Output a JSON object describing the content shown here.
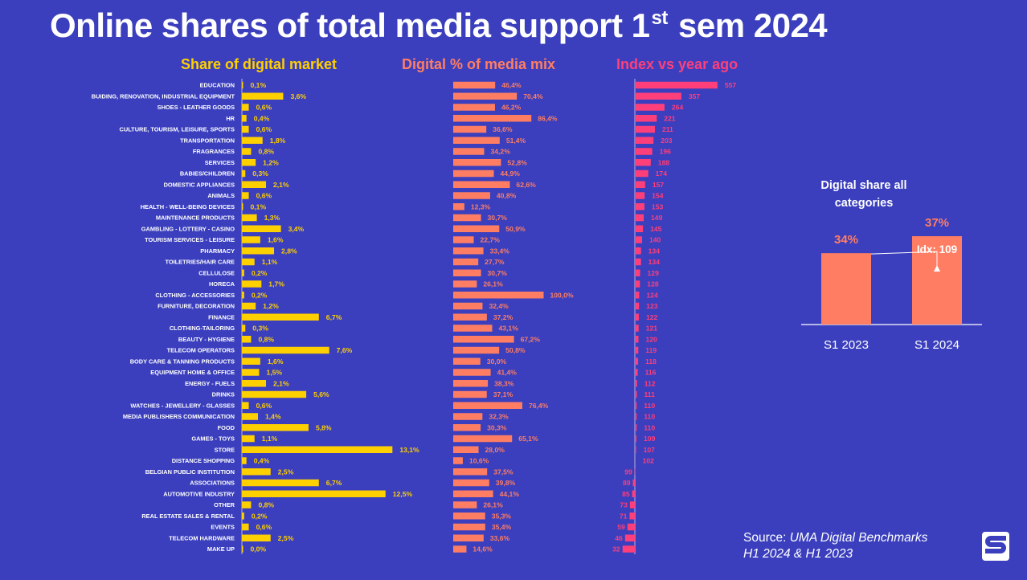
{
  "title": {
    "main": "Online shares of total media support 1",
    "sup": "st",
    "rest": " sem 2024"
  },
  "headers": {
    "share": "Share of digital market",
    "mix": "Digital % of media mix",
    "index": "Index vs year ago"
  },
  "colors": {
    "background": "#3b3fbd",
    "share_bar": "#ffd000",
    "mix_bar": "#ff7e63",
    "index_bar": "#ff3f7a"
  },
  "chart_data": [
    {
      "type": "bar",
      "orientation": "horizontal",
      "title": "",
      "series": [
        {
          "name": "Share of digital market",
          "unit": "%"
        },
        {
          "name": "Digital % of media mix",
          "unit": "%"
        },
        {
          "name": "Index vs year ago",
          "unit": "index"
        }
      ],
      "rows": [
        {
          "category": "EDUCATION",
          "share": 0.1,
          "share_label": "0,1%",
          "mix": 46.4,
          "mix_label": "46,4%",
          "index": 557
        },
        {
          "category": "BUIDING, RENOVATION, INDUSTRIAL EQUIPMENT",
          "share": 3.6,
          "share_label": "3,6%",
          "mix": 70.4,
          "mix_label": "70,4%",
          "index": 357
        },
        {
          "category": "SHOES - LEATHER GOODS",
          "share": 0.6,
          "share_label": "0,6%",
          "mix": 46.2,
          "mix_label": "46,2%",
          "index": 264
        },
        {
          "category": "HR",
          "share": 0.4,
          "share_label": "0,4%",
          "mix": 86.4,
          "mix_label": "86,4%",
          "index": 221
        },
        {
          "category": "CULTURE, TOURISM, LEISURE, SPORTS",
          "share": 0.6,
          "share_label": "0,6%",
          "mix": 36.6,
          "mix_label": "36,6%",
          "index": 211
        },
        {
          "category": "TRANSPORTATION",
          "share": 1.8,
          "share_label": "1,8%",
          "mix": 51.4,
          "mix_label": "51,4%",
          "index": 203
        },
        {
          "category": "FRAGRANCES",
          "share": 0.8,
          "share_label": "0,8%",
          "mix": 34.2,
          "mix_label": "34,2%",
          "index": 196
        },
        {
          "category": "SERVICES",
          "share": 1.2,
          "share_label": "1,2%",
          "mix": 52.8,
          "mix_label": "52,8%",
          "index": 188
        },
        {
          "category": "BABIES/CHILDREN",
          "share": 0.3,
          "share_label": "0,3%",
          "mix": 44.9,
          "mix_label": "44,9%",
          "index": 174
        },
        {
          "category": "DOMESTIC APPLIANCES",
          "share": 2.1,
          "share_label": "2,1%",
          "mix": 62.6,
          "mix_label": "62,6%",
          "index": 157
        },
        {
          "category": "ANIMALS",
          "share": 0.6,
          "share_label": "0,6%",
          "mix": 40.8,
          "mix_label": "40,8%",
          "index": 154
        },
        {
          "category": "HEALTH - WELL-BEING DEVICES",
          "share": 0.1,
          "share_label": "0,1%",
          "mix": 12.3,
          "mix_label": "12,3%",
          "index": 153
        },
        {
          "category": "MAINTENANCE PRODUCTS",
          "share": 1.3,
          "share_label": "1,3%",
          "mix": 30.7,
          "mix_label": "30,7%",
          "index": 149
        },
        {
          "category": "GAMBLING - LOTTERY - CASINO",
          "share": 3.4,
          "share_label": "3,4%",
          "mix": 50.9,
          "mix_label": "50,9%",
          "index": 145
        },
        {
          "category": "TOURISM SERVICES - LEISURE",
          "share": 1.6,
          "share_label": "1,6%",
          "mix": 22.7,
          "mix_label": "22,7%",
          "index": 140
        },
        {
          "category": "PHARMACY",
          "share": 2.8,
          "share_label": "2,8%",
          "mix": 33.4,
          "mix_label": "33,4%",
          "index": 134
        },
        {
          "category": "TOILETRIES/HAIR CARE",
          "share": 1.1,
          "share_label": "1,1%",
          "mix": 27.7,
          "mix_label": "27,7%",
          "index": 134
        },
        {
          "category": "CELLULOSE",
          "share": 0.2,
          "share_label": "0,2%",
          "mix": 30.7,
          "mix_label": "30,7%",
          "index": 129
        },
        {
          "category": "HORECA",
          "share": 1.7,
          "share_label": "1,7%",
          "mix": 26.1,
          "mix_label": "26,1%",
          "index": 128
        },
        {
          "category": "CLOTHING - ACCESSORIES",
          "share": 0.2,
          "share_label": "0,2%",
          "mix": 100.0,
          "mix_label": "100,0%",
          "index": 124
        },
        {
          "category": "FURNITURE, DECORATION",
          "share": 1.2,
          "share_label": "1,2%",
          "mix": 32.4,
          "mix_label": "32,4%",
          "index": 123
        },
        {
          "category": "FINANCE",
          "share": 6.7,
          "share_label": "6,7%",
          "mix": 37.2,
          "mix_label": "37,2%",
          "index": 122
        },
        {
          "category": "CLOTHING-TAILORING",
          "share": 0.3,
          "share_label": "0,3%",
          "mix": 43.1,
          "mix_label": "43,1%",
          "index": 121
        },
        {
          "category": "BEAUTY - HYGIENE",
          "share": 0.8,
          "share_label": "0,8%",
          "mix": 67.2,
          "mix_label": "67,2%",
          "index": 120
        },
        {
          "category": "TELECOM OPERATORS",
          "share": 7.6,
          "share_label": "7,6%",
          "mix": 50.8,
          "mix_label": "50,8%",
          "index": 119
        },
        {
          "category": "BODY CARE & TANNING PRODUCTS",
          "share": 1.6,
          "share_label": "1,6%",
          "mix": 30.0,
          "mix_label": "30,0%",
          "index": 118
        },
        {
          "category": "EQUIPMENT HOME & OFFICE",
          "share": 1.5,
          "share_label": "1,5%",
          "mix": 41.4,
          "mix_label": "41,4%",
          "index": 116
        },
        {
          "category": "ENERGY - FUELS",
          "share": 2.1,
          "share_label": "2,1%",
          "mix": 38.3,
          "mix_label": "38,3%",
          "index": 112
        },
        {
          "category": "DRINKS",
          "share": 5.6,
          "share_label": "5,6%",
          "mix": 37.1,
          "mix_label": "37,1%",
          "index": 111
        },
        {
          "category": "WATCHES - JEWELLERY - GLASSES",
          "share": 0.6,
          "share_label": "0,6%",
          "mix": 76.4,
          "mix_label": "76,4%",
          "index": 110
        },
        {
          "category": "MEDIA PUBLISHERS COMMUNICATION",
          "share": 1.4,
          "share_label": "1,4%",
          "mix": 32.3,
          "mix_label": "32,3%",
          "index": 110
        },
        {
          "category": "FOOD",
          "share": 5.8,
          "share_label": "5,8%",
          "mix": 30.3,
          "mix_label": "30,3%",
          "index": 110
        },
        {
          "category": "GAMES - TOYS",
          "share": 1.1,
          "share_label": "1,1%",
          "mix": 65.1,
          "mix_label": "65,1%",
          "index": 109
        },
        {
          "category": "STORE",
          "share": 13.1,
          "share_label": "13,1%",
          "mix": 28.0,
          "mix_label": "28,0%",
          "index": 107
        },
        {
          "category": "DISTANCE SHOPPING",
          "share": 0.4,
          "share_label": "0,4%",
          "mix": 10.6,
          "mix_label": "10,6%",
          "index": 102
        },
        {
          "category": "BELGIAN PUBLIC INSTITUTION",
          "share": 2.5,
          "share_label": "2,5%",
          "mix": 37.5,
          "mix_label": "37,5%",
          "index": 99
        },
        {
          "category": "ASSOCIATIONS",
          "share": 6.7,
          "share_label": "6,7%",
          "mix": 39.8,
          "mix_label": "39,8%",
          "index": 89
        },
        {
          "category": "AUTOMOTIVE INDUSTRY",
          "share": 12.5,
          "share_label": "12,5%",
          "mix": 44.1,
          "mix_label": "44,1%",
          "index": 85
        },
        {
          "category": "OTHER",
          "share": 0.8,
          "share_label": "0,8%",
          "mix": 26.1,
          "mix_label": "26,1%",
          "index": 73
        },
        {
          "category": "REAL ESTATE SALES & RENTAL",
          "share": 0.2,
          "share_label": "0,2%",
          "mix": 35.3,
          "mix_label": "35,3%",
          "index": 71
        },
        {
          "category": "EVENTS",
          "share": 0.6,
          "share_label": "0,6%",
          "mix": 35.4,
          "mix_label": "35,4%",
          "index": 59
        },
        {
          "category": "TELECOM HARDWARE",
          "share": 2.5,
          "share_label": "2,5%",
          "mix": 33.6,
          "mix_label": "33,6%",
          "index": 46
        },
        {
          "category": "MAKE UP",
          "share": 0.0,
          "share_label": "0,0%",
          "mix": 14.6,
          "mix_label": "14,6%",
          "index": 32
        }
      ],
      "index_baseline": 100
    },
    {
      "type": "bar",
      "title": "Digital share all categories",
      "categories": [
        "S1 2023",
        "S1 2024"
      ],
      "values": [
        34,
        37
      ],
      "value_labels": [
        "34%",
        "37%"
      ],
      "annotation": "Idx: 109",
      "bar_color": "#ff7e63"
    }
  ],
  "source": {
    "prefix": "Source: ",
    "name": "UMA Digital Benchmarks",
    "period": "H1 2024 & H1 2023"
  },
  "logo": {
    "letter": "S"
  }
}
